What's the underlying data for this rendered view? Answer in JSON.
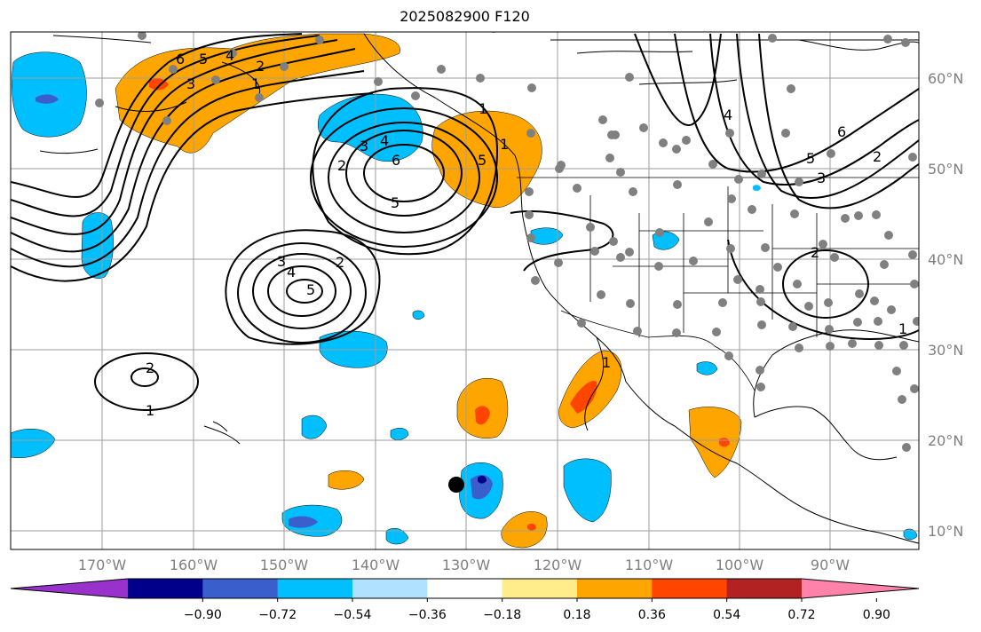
{
  "title": "2025082900 F120",
  "lon_labels": [
    "170°W",
    "160°W",
    "150°W",
    "140°W",
    "130°W",
    "120°W",
    "110°W",
    "100°W",
    "90°W"
  ],
  "lat_labels": [
    "60°N",
    "50°N",
    "40°N",
    "30°N",
    "20°N",
    "10°N"
  ],
  "colorbar": {
    "ticks": [
      "−0.90",
      "−0.72",
      "−0.54",
      "−0.36",
      "−0.18",
      "0.18",
      "0.36",
      "0.54",
      "0.72",
      "0.90"
    ],
    "colors": [
      "#9932cc",
      "#00008b",
      "#3a5fcd",
      "#00bfff",
      "#b0e2ff",
      "#ffffff",
      "#ffec8b",
      "#ffa500",
      "#ff4500",
      "#b22222",
      "#ff82ab"
    ]
  },
  "contour_labels": [
    "6",
    "5",
    "4",
    "3",
    "2",
    "1",
    "1",
    "2",
    "3",
    "4",
    "5",
    "6",
    "5",
    "1",
    "2",
    "3",
    "4",
    "5",
    "2",
    "1",
    "1",
    "2",
    "3",
    "4",
    "5",
    "6",
    "2",
    "1"
  ]
}
